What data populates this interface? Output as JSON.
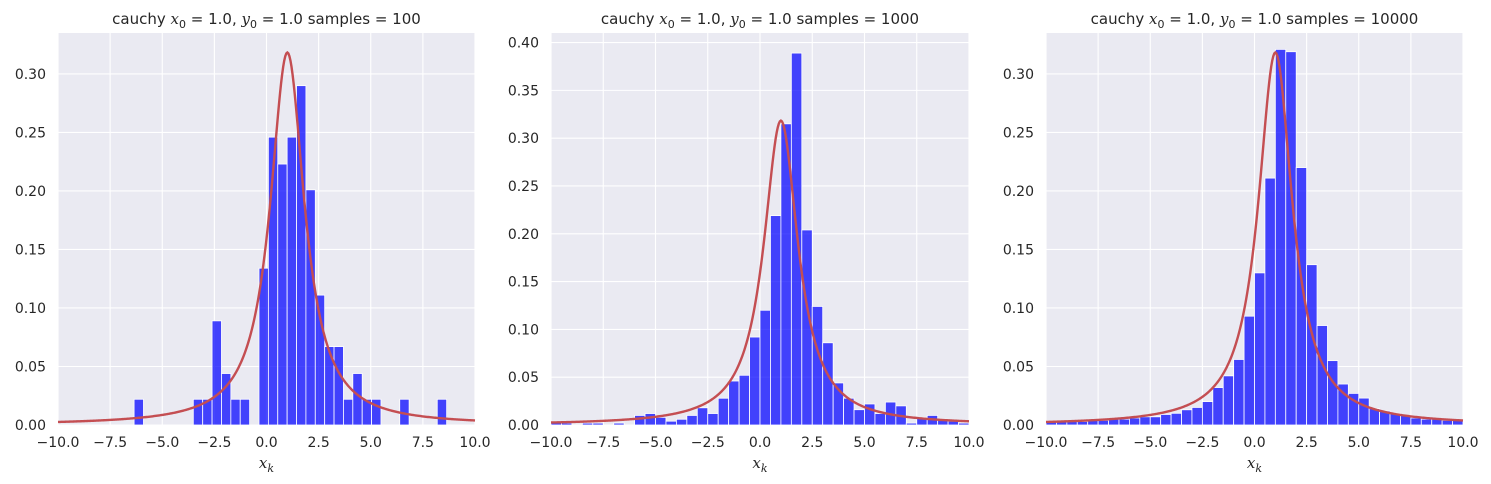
{
  "colors": {
    "bar": "#0000ff",
    "curve": "#c44e52",
    "panel": "#eaeaf2",
    "grid": "#ffffff"
  },
  "chart_data": [
    {
      "type": "bar",
      "title": "cauchy x₀ = 1.0, y₀ = 1.0  samples = 100",
      "title_parts": {
        "lead": "cauchy ",
        "x_sym": "x",
        "x_sub": "0",
        "x_val": " = 1.0, ",
        "y_sym": "y",
        "y_sub": "0",
        "y_val": " = 1.0  samples = 100"
      },
      "xlabel": "x_k",
      "xlabel_parts": {
        "sym": "x",
        "sub": "k"
      },
      "xlim": [
        -10,
        10
      ],
      "ylim": [
        0,
        0.335
      ],
      "xticks": [
        "−10.0",
        "−7.5",
        "−5.0",
        "−2.5",
        "0.0",
        "2.5",
        "5.0",
        "7.5",
        "10.0"
      ],
      "yticks": [
        "0.00",
        "0.05",
        "0.10",
        "0.15",
        "0.20",
        "0.25",
        "0.30"
      ],
      "bin_width": 0.45,
      "bins": [
        [
          -6.35,
          0.022
        ],
        [
          -3.51,
          0.022
        ],
        [
          -3.06,
          0.022
        ],
        [
          -2.61,
          0.089
        ],
        [
          -2.16,
          0.044
        ],
        [
          -1.71,
          0.022
        ],
        [
          -1.26,
          0.022
        ],
        [
          -0.36,
          0.134
        ],
        [
          0.09,
          0.246
        ],
        [
          0.54,
          0.223
        ],
        [
          0.99,
          0.246
        ],
        [
          1.44,
          0.29
        ],
        [
          1.89,
          0.201
        ],
        [
          2.34,
          0.111
        ],
        [
          2.79,
          0.067
        ],
        [
          3.24,
          0.067
        ],
        [
          3.69,
          0.022
        ],
        [
          4.14,
          0.044
        ],
        [
          4.59,
          0.022
        ],
        [
          5.04,
          0.022
        ],
        [
          6.39,
          0.022
        ],
        [
          8.19,
          0.022
        ]
      ],
      "curve": {
        "name": "cauchy pdf",
        "x0": 1.0,
        "gamma": 1.0
      }
    },
    {
      "type": "bar",
      "title": "cauchy x₀ = 1.0, y₀ = 1.0  samples = 1000",
      "title_parts": {
        "lead": "cauchy ",
        "x_sym": "x",
        "x_sub": "0",
        "x_val": " = 1.0, ",
        "y_sym": "y",
        "y_sub": "0",
        "y_val": " = 1.0  samples = 1000"
      },
      "xlabel": "x_k",
      "xlabel_parts": {
        "sym": "x",
        "sub": "k"
      },
      "xlim": [
        -10,
        10
      ],
      "ylim": [
        0,
        0.41
      ],
      "xticks": [
        "−10.0",
        "−7.5",
        "−5.0",
        "−2.5",
        "0.0",
        "2.5",
        "5.0",
        "7.5",
        "10.0"
      ],
      "yticks": [
        "0.00",
        "0.05",
        "0.10",
        "0.15",
        "0.20",
        "0.25",
        "0.30",
        "0.35",
        "0.40"
      ],
      "bin_width": 0.5,
      "bins": [
        [
          -10.0,
          0.003
        ],
        [
          -9.5,
          0.002
        ],
        [
          -8.5,
          0.002
        ],
        [
          -8.0,
          0.002
        ],
        [
          -7.0,
          0.002
        ],
        [
          -6.0,
          0.01
        ],
        [
          -5.5,
          0.012
        ],
        [
          -5.0,
          0.008
        ],
        [
          -4.5,
          0.004
        ],
        [
          -4.0,
          0.006
        ],
        [
          -3.5,
          0.01
        ],
        [
          -3.0,
          0.018
        ],
        [
          -2.5,
          0.012
        ],
        [
          -2.0,
          0.028
        ],
        [
          -1.5,
          0.046
        ],
        [
          -1.0,
          0.052
        ],
        [
          -0.5,
          0.092
        ],
        [
          0.0,
          0.12
        ],
        [
          0.5,
          0.219
        ],
        [
          1.0,
          0.315
        ],
        [
          1.5,
          0.389
        ],
        [
          2.0,
          0.204
        ],
        [
          2.5,
          0.124
        ],
        [
          3.0,
          0.086
        ],
        [
          3.5,
          0.044
        ],
        [
          4.0,
          0.028
        ],
        [
          4.5,
          0.016
        ],
        [
          5.0,
          0.022
        ],
        [
          5.5,
          0.012
        ],
        [
          6.0,
          0.024
        ],
        [
          6.5,
          0.02
        ],
        [
          7.0,
          0.002
        ],
        [
          7.5,
          0.008
        ],
        [
          8.0,
          0.01
        ],
        [
          8.5,
          0.006
        ],
        [
          9.0,
          0.004
        ],
        [
          9.5,
          0.002
        ]
      ],
      "curve": {
        "name": "cauchy pdf",
        "x0": 1.0,
        "gamma": 1.0
      }
    },
    {
      "type": "bar",
      "title": "cauchy x₀ = 1.0, y₀ = 1.0  samples = 10000",
      "title_parts": {
        "lead": "cauchy ",
        "x_sym": "x",
        "x_sub": "0",
        "x_val": " = 1.0, ",
        "y_sym": "y",
        "y_sub": "0",
        "y_val": " = 1.0  samples = 10000"
      },
      "xlabel": "x_k",
      "xlabel_parts": {
        "sym": "x",
        "sub": "k"
      },
      "xlim": [
        -10,
        10
      ],
      "ylim": [
        0,
        0.335
      ],
      "xticks": [
        "−10.0",
        "−7.5",
        "−5.0",
        "−2.5",
        "0.0",
        "2.5",
        "5.0",
        "7.5",
        "10.0"
      ],
      "yticks": [
        "0.00",
        "0.05",
        "0.10",
        "0.15",
        "0.20",
        "0.25",
        "0.30"
      ],
      "bin_width": 0.5,
      "bins": [
        [
          -10.0,
          0.003
        ],
        [
          -9.5,
          0.003
        ],
        [
          -9.0,
          0.003
        ],
        [
          -8.5,
          0.003
        ],
        [
          -8.0,
          0.004
        ],
        [
          -7.5,
          0.004
        ],
        [
          -7.0,
          0.005
        ],
        [
          -6.5,
          0.005
        ],
        [
          -6.0,
          0.006
        ],
        [
          -5.5,
          0.007
        ],
        [
          -5.0,
          0.007
        ],
        [
          -4.5,
          0.009
        ],
        [
          -4.0,
          0.01
        ],
        [
          -3.5,
          0.013
        ],
        [
          -3.0,
          0.015
        ],
        [
          -2.5,
          0.02
        ],
        [
          -2.0,
          0.032
        ],
        [
          -1.5,
          0.042
        ],
        [
          -1.0,
          0.056
        ],
        [
          -0.5,
          0.093
        ],
        [
          0.0,
          0.13
        ],
        [
          0.5,
          0.211
        ],
        [
          1.0,
          0.321
        ],
        [
          1.5,
          0.319
        ],
        [
          2.0,
          0.22
        ],
        [
          2.5,
          0.137
        ],
        [
          3.0,
          0.085
        ],
        [
          3.5,
          0.055
        ],
        [
          4.0,
          0.035
        ],
        [
          4.5,
          0.027
        ],
        [
          5.0,
          0.023
        ],
        [
          5.5,
          0.014
        ],
        [
          6.0,
          0.012
        ],
        [
          6.5,
          0.01
        ],
        [
          7.0,
          0.008
        ],
        [
          7.5,
          0.006
        ],
        [
          8.0,
          0.005
        ],
        [
          8.5,
          0.005
        ],
        [
          9.0,
          0.004
        ],
        [
          9.5,
          0.004
        ]
      ],
      "curve": {
        "name": "cauchy pdf",
        "x0": 1.0,
        "gamma": 1.0
      }
    }
  ]
}
